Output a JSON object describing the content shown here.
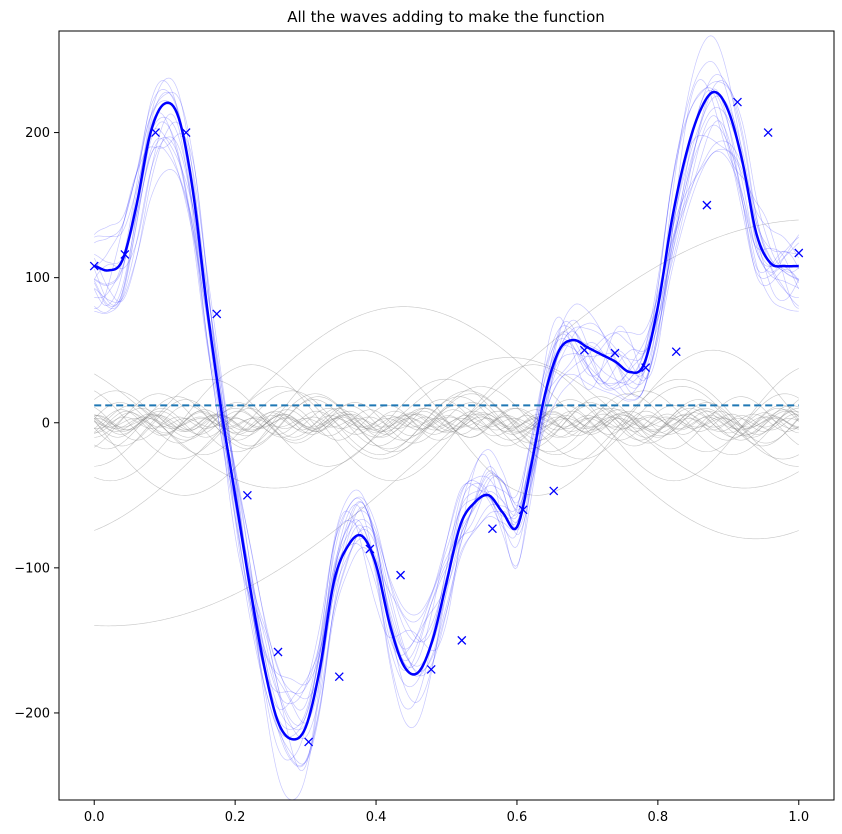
{
  "chart_data": {
    "type": "line",
    "title": "All the waves adding to make the function",
    "xlabel": "",
    "ylabel": "",
    "xlim": [
      -0.05,
      1.05
    ],
    "ylim": [
      -260,
      270
    ],
    "x_ticks": [
      {
        "value": 0.0,
        "label": "0.0"
      },
      {
        "value": 0.2,
        "label": "0.2"
      },
      {
        "value": 0.4,
        "label": "0.4"
      },
      {
        "value": 0.6,
        "label": "0.6"
      },
      {
        "value": 0.8,
        "label": "0.8"
      },
      {
        "value": 1.0,
        "label": "1.0"
      }
    ],
    "y_ticks": [
      {
        "value": -200,
        "label": "−200"
      },
      {
        "value": -100,
        "label": "−100"
      },
      {
        "value": 0,
        "label": "0"
      },
      {
        "value": 100,
        "label": "100"
      },
      {
        "value": 200,
        "label": "200"
      }
    ],
    "grid": false,
    "colors": {
      "main_line": "#0000ff",
      "markers": "#0000ff",
      "partial_sums": "#0000ff",
      "components": "#808080",
      "mean_line": "#1f77b4"
    },
    "mean_level": 12,
    "series": [
      {
        "style": "solid-thick",
        "x": [
          0.0,
          0.02,
          0.04,
          0.06,
          0.08,
          0.1,
          0.12,
          0.14,
          0.16,
          0.18,
          0.2,
          0.22,
          0.24,
          0.26,
          0.28,
          0.3,
          0.32,
          0.34,
          0.36,
          0.38,
          0.4,
          0.42,
          0.44,
          0.46,
          0.48,
          0.5,
          0.52,
          0.54,
          0.56,
          0.58,
          0.6,
          0.62,
          0.64,
          0.66,
          0.68,
          0.7,
          0.72,
          0.74,
          0.76,
          0.78,
          0.8,
          0.82,
          0.84,
          0.86,
          0.88,
          0.9,
          0.92,
          0.94,
          0.96,
          0.98,
          1.0
        ],
        "y": [
          108,
          105,
          112,
          150,
          200,
          220,
          210,
          160,
          80,
          10,
          -50,
          -110,
          -165,
          -205,
          -218,
          -210,
          -170,
          -110,
          -85,
          -78,
          -98,
          -140,
          -168,
          -172,
          -150,
          -110,
          -70,
          -55,
          -50,
          -62,
          -72,
          -30,
          20,
          50,
          57,
          52,
          47,
          42,
          35,
          40,
          80,
          140,
          185,
          215,
          228,
          215,
          180,
          130,
          110,
          108,
          108
        ]
      },
      {
        "style": "markers-x",
        "x": [
          0.0,
          0.0435,
          0.087,
          0.1304,
          0.1739,
          0.2174,
          0.2609,
          0.3043,
          0.3478,
          0.3913,
          0.4348,
          0.4783,
          0.5217,
          0.5652,
          0.6087,
          0.6522,
          0.6957,
          0.7391,
          0.7826,
          0.8261,
          0.8696,
          0.913,
          0.9565,
          1.0
        ],
        "y": [
          108,
          116,
          200,
          200,
          75,
          -50,
          -158,
          -220,
          -175,
          -87,
          -105,
          -170,
          -150,
          -73,
          -60,
          -47,
          50,
          48,
          38,
          49,
          150,
          221,
          200,
          117
        ]
      },
      {
        "style": "dashed",
        "x": [
          0.0,
          1.0
        ],
        "y": [
          12,
          12
        ]
      }
    ]
  }
}
